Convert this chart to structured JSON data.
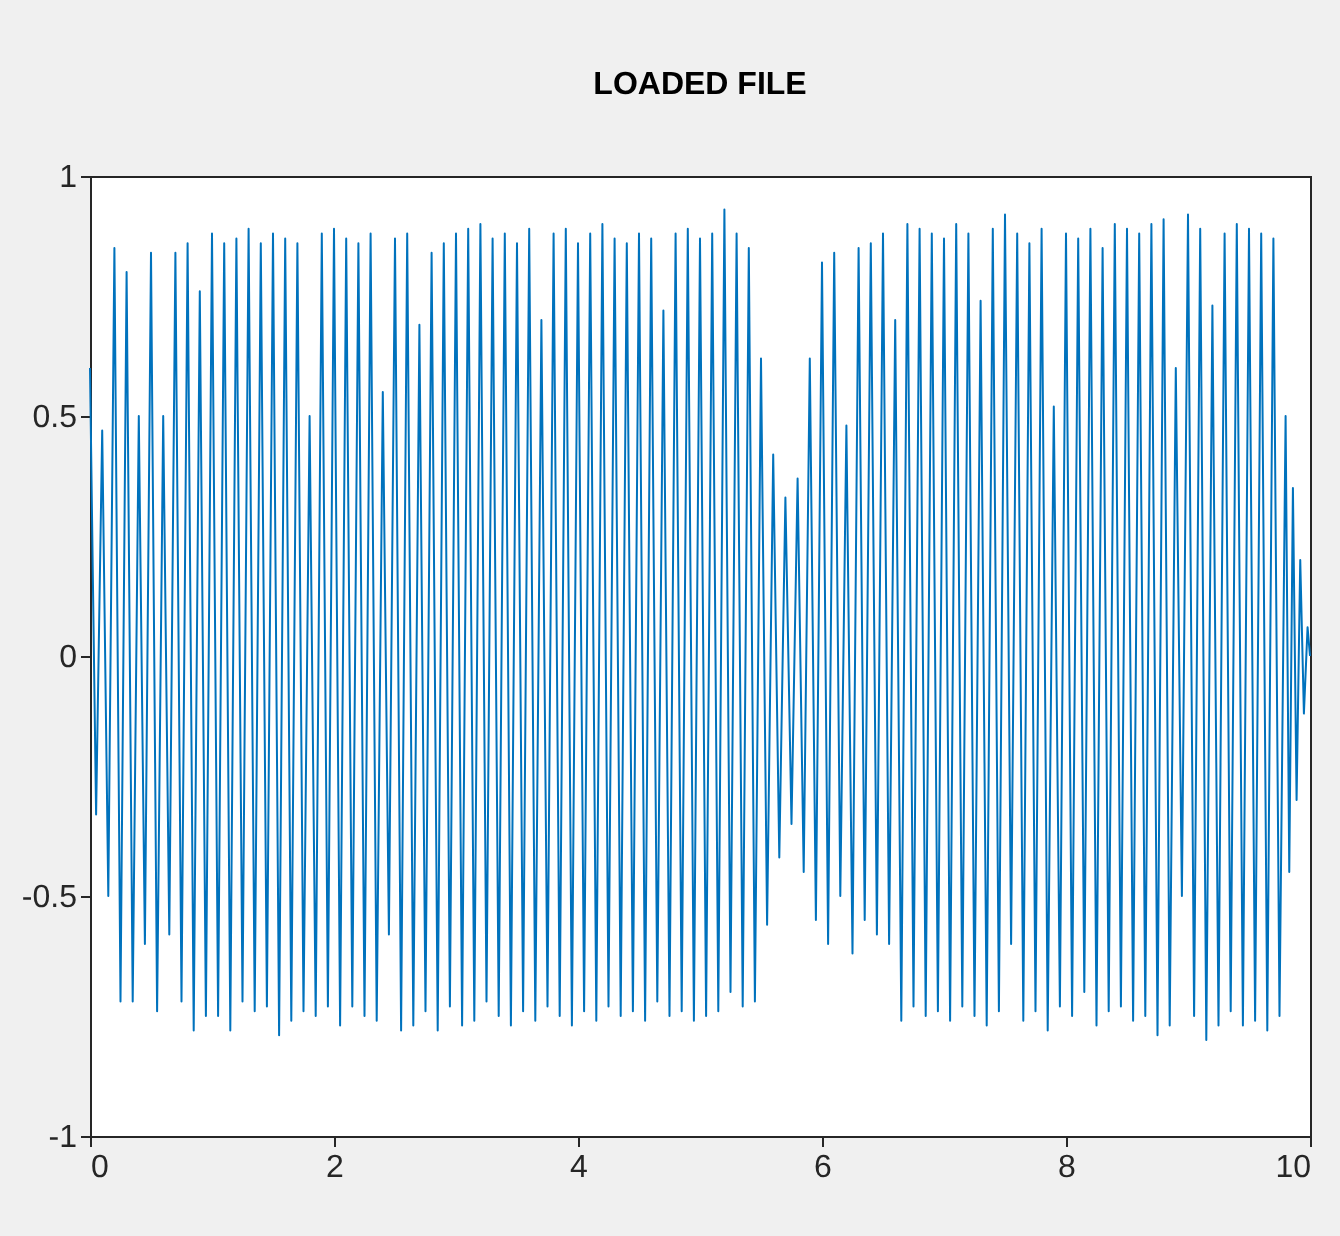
{
  "chart_data": {
    "type": "line",
    "title": "LOADED FILE",
    "xlim": [
      0,
      10
    ],
    "xticks": [
      0,
      2,
      4,
      6,
      8,
      10
    ],
    "ylim": [
      -1,
      1
    ],
    "yticks": [
      -1,
      -0.5,
      0,
      0.5,
      1
    ],
    "grid": false,
    "marker": "none",
    "line_style": "solid",
    "series": [
      {
        "color": "#0072bd",
        "x": [
          0,
          0.05,
          0.1,
          0.15,
          0.2,
          0.25,
          0.3,
          0.35,
          0.4,
          0.45,
          0.5,
          0.55,
          0.6,
          0.65,
          0.7,
          0.75,
          0.8,
          0.85,
          0.9,
          0.95,
          1,
          1.05,
          1.1,
          1.15,
          1.2,
          1.25,
          1.3,
          1.35,
          1.4,
          1.45,
          1.5,
          1.55,
          1.6,
          1.65,
          1.7,
          1.75,
          1.8,
          1.85,
          1.9,
          1.95,
          2,
          2.05,
          2.1,
          2.15,
          2.2,
          2.25,
          2.3,
          2.35,
          2.4,
          2.45,
          2.5,
          2.55,
          2.6,
          2.65,
          2.7,
          2.75,
          2.8,
          2.85,
          2.9,
          2.95,
          3,
          3.05,
          3.1,
          3.15,
          3.2,
          3.25,
          3.3,
          3.35,
          3.4,
          3.45,
          3.5,
          3.55,
          3.6,
          3.65,
          3.7,
          3.75,
          3.8,
          3.85,
          3.9,
          3.95,
          4,
          4.05,
          4.1,
          4.15,
          4.2,
          4.25,
          4.3,
          4.35,
          4.4,
          4.45,
          4.5,
          4.55,
          4.6,
          4.65,
          4.7,
          4.75,
          4.8,
          4.85,
          4.9,
          4.95,
          5,
          5.05,
          5.1,
          5.15,
          5.2,
          5.25,
          5.3,
          5.35,
          5.4,
          5.45,
          5.5,
          5.55,
          5.6,
          5.65,
          5.7,
          5.75,
          5.8,
          5.85,
          5.9,
          5.95,
          6,
          6.05,
          6.1,
          6.15,
          6.2,
          6.25,
          6.3,
          6.35,
          6.4,
          6.45,
          6.5,
          6.55,
          6.6,
          6.65,
          6.7,
          6.75,
          6.8,
          6.85,
          6.9,
          6.95,
          7,
          7.05,
          7.1,
          7.15,
          7.2,
          7.25,
          7.3,
          7.35,
          7.4,
          7.45,
          7.5,
          7.55,
          7.6,
          7.65,
          7.7,
          7.75,
          7.8,
          7.85,
          7.9,
          7.95,
          8,
          8.05,
          8.1,
          8.15,
          8.2,
          8.25,
          8.3,
          8.35,
          8.4,
          8.45,
          8.5,
          8.55,
          8.6,
          8.65,
          8.7,
          8.75,
          8.8,
          8.85,
          8.9,
          8.95,
          9,
          9.05,
          9.1,
          9.15,
          9.2,
          9.25,
          9.3,
          9.35,
          9.4,
          9.45,
          9.5,
          9.55,
          9.6,
          9.65,
          9.7,
          9.75,
          9.8,
          9.83,
          9.86,
          9.89,
          9.92,
          9.95,
          9.98,
          10
        ],
        "values": [
          0.6,
          -0.33,
          0.47,
          -0.5,
          0.85,
          -0.72,
          0.8,
          -0.72,
          0.5,
          -0.6,
          0.84,
          -0.74,
          0.5,
          -0.58,
          0.84,
          -0.72,
          0.86,
          -0.78,
          0.76,
          -0.75,
          0.88,
          -0.75,
          0.86,
          -0.78,
          0.87,
          -0.72,
          0.89,
          -0.74,
          0.86,
          -0.73,
          0.88,
          -0.79,
          0.87,
          -0.76,
          0.86,
          -0.74,
          0.5,
          -0.75,
          0.88,
          -0.73,
          0.89,
          -0.77,
          0.87,
          -0.73,
          0.86,
          -0.75,
          0.88,
          -0.76,
          0.55,
          -0.58,
          0.87,
          -0.78,
          0.88,
          -0.77,
          0.69,
          -0.74,
          0.84,
          -0.78,
          0.86,
          -0.73,
          0.88,
          -0.77,
          0.89,
          -0.76,
          0.9,
          -0.72,
          0.87,
          -0.75,
          0.88,
          -0.77,
          0.86,
          -0.74,
          0.89,
          -0.76,
          0.7,
          -0.73,
          0.88,
          -0.75,
          0.89,
          -0.77,
          0.86,
          -0.74,
          0.88,
          -0.76,
          0.9,
          -0.73,
          0.87,
          -0.75,
          0.86,
          -0.74,
          0.88,
          -0.76,
          0.87,
          -0.72,
          0.72,
          -0.75,
          0.88,
          -0.74,
          0.89,
          -0.76,
          0.87,
          -0.75,
          0.88,
          -0.74,
          0.93,
          -0.7,
          0.88,
          -0.73,
          0.85,
          -0.72,
          0.62,
          -0.56,
          0.42,
          -0.42,
          0.33,
          -0.35,
          0.37,
          -0.45,
          0.62,
          -0.55,
          0.82,
          -0.6,
          0.84,
          -0.5,
          0.48,
          -0.62,
          0.85,
          -0.55,
          0.86,
          -0.58,
          0.88,
          -0.6,
          0.7,
          -0.76,
          0.9,
          -0.73,
          0.89,
          -0.75,
          0.88,
          -0.74,
          0.87,
          -0.76,
          0.9,
          -0.73,
          0.88,
          -0.75,
          0.74,
          -0.77,
          0.89,
          -0.74,
          0.92,
          -0.6,
          0.88,
          -0.76,
          0.86,
          -0.74,
          0.89,
          -0.78,
          0.52,
          -0.73,
          0.88,
          -0.75,
          0.87,
          -0.7,
          0.89,
          -0.77,
          0.85,
          -0.74,
          0.9,
          -0.73,
          0.89,
          -0.76,
          0.88,
          -0.75,
          0.9,
          -0.79,
          0.91,
          -0.77,
          0.6,
          -0.5,
          0.92,
          -0.75,
          0.89,
          -0.8,
          0.73,
          -0.77,
          0.88,
          -0.74,
          0.9,
          -0.77,
          0.89,
          -0.76,
          0.88,
          -0.78,
          0.87,
          -0.75,
          0.5,
          -0.45,
          0.35,
          -0.3,
          0.2,
          -0.12,
          0.06,
          0
        ]
      }
    ]
  }
}
